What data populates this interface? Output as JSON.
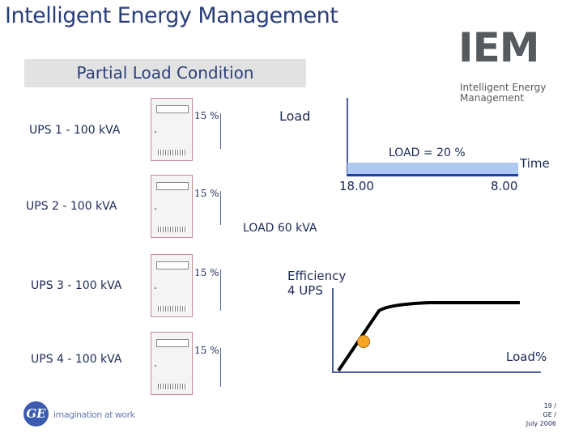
{
  "header": {
    "title": "Intelligent Energy Management",
    "subtitle": "Partial Load Condition"
  },
  "logo": {
    "mark": "IEM",
    "line1": "Intelligent Energy",
    "line2": "Management"
  },
  "ups": [
    {
      "label": "UPS 1 - 100 kVA",
      "percent": "15 %"
    },
    {
      "label": "UPS 2 - 100 kVA",
      "percent": "15 %"
    },
    {
      "label": "UPS 3 - 100 kVA",
      "percent": "15 %"
    },
    {
      "label": "UPS 4 - 100 kVA",
      "percent": "15 %"
    }
  ],
  "load_chart": {
    "ylabel": "Load",
    "xlabel": "Time",
    "bar_label": "LOAD = 20 %",
    "start_time": "18.00",
    "end_time": "8.00",
    "total_load": "LOAD 60 kVA"
  },
  "efficiency_chart": {
    "ylabel_line1": "Efficiency",
    "ylabel_line2": "4 UPS",
    "xlabel": "Load%"
  },
  "footer": {
    "brand_mark": "GE",
    "tagline": "imagination at work",
    "page": "19 /",
    "org": "GE /",
    "date": "July 2006"
  },
  "colors": {
    "title_blue": "#2a3f7a",
    "bar_fill": "#aecaf2",
    "bar_edge": "#1f3fa8",
    "operating_point": "#f4a623"
  }
}
